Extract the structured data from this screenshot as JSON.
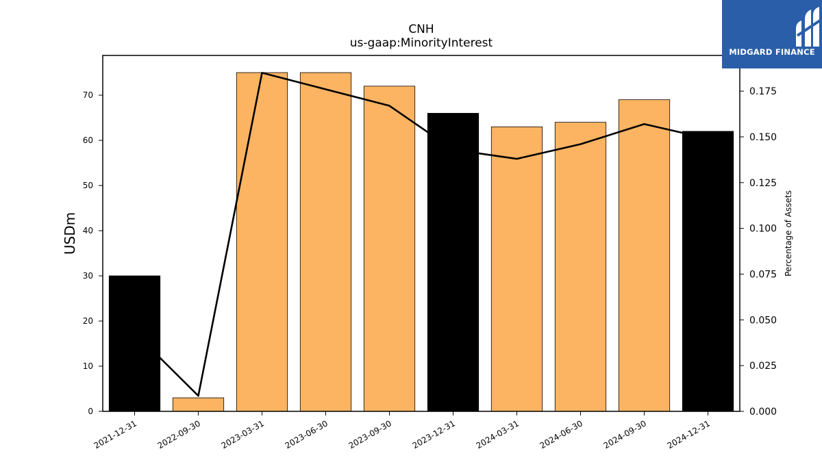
{
  "chart_data": {
    "type": "bar",
    "title": "CNH",
    "subtitle": "us-gaap:MinorityInterest",
    "xlabel": "",
    "ylabel": "USDm",
    "y2label": "Percentage of Assets",
    "categories": [
      "2021-12-31",
      "2022-09-30",
      "2023-03-31",
      "2023-06-30",
      "2023-09-30",
      "2023-12-31",
      "2024-03-31",
      "2024-06-30",
      "2024-09-30",
      "2024-12-31"
    ],
    "series": [
      {
        "type": "bar",
        "values": [
          30,
          3,
          75,
          75,
          72,
          66,
          63,
          64,
          69,
          62
        ],
        "colors": [
          "#000000",
          "#fdb462",
          "#fdb462",
          "#fdb462",
          "#fdb462",
          "#000000",
          "#fdb462",
          "#fdb462",
          "#fdb462",
          "#000000"
        ]
      },
      {
        "type": "line",
        "axis": "right",
        "color": "#000000",
        "values": [
          0.043,
          0.0085,
          0.185,
          0.176,
          0.167,
          0.143,
          0.138,
          0.146,
          0.157,
          0.149
        ]
      }
    ],
    "ylim": [
      0,
      78.8
    ],
    "y2lim": [
      0,
      0.1945
    ],
    "yticks": [
      0,
      10,
      20,
      30,
      40,
      50,
      60,
      70
    ],
    "y2ticks": [
      "0.000",
      "0.025",
      "0.050",
      "0.075",
      "0.100",
      "0.125",
      "0.150",
      "0.175"
    ],
    "grid": false,
    "legend": "none"
  },
  "logo": {
    "text": "MIDGARD FINANCE",
    "color": "#2a5ea8"
  }
}
